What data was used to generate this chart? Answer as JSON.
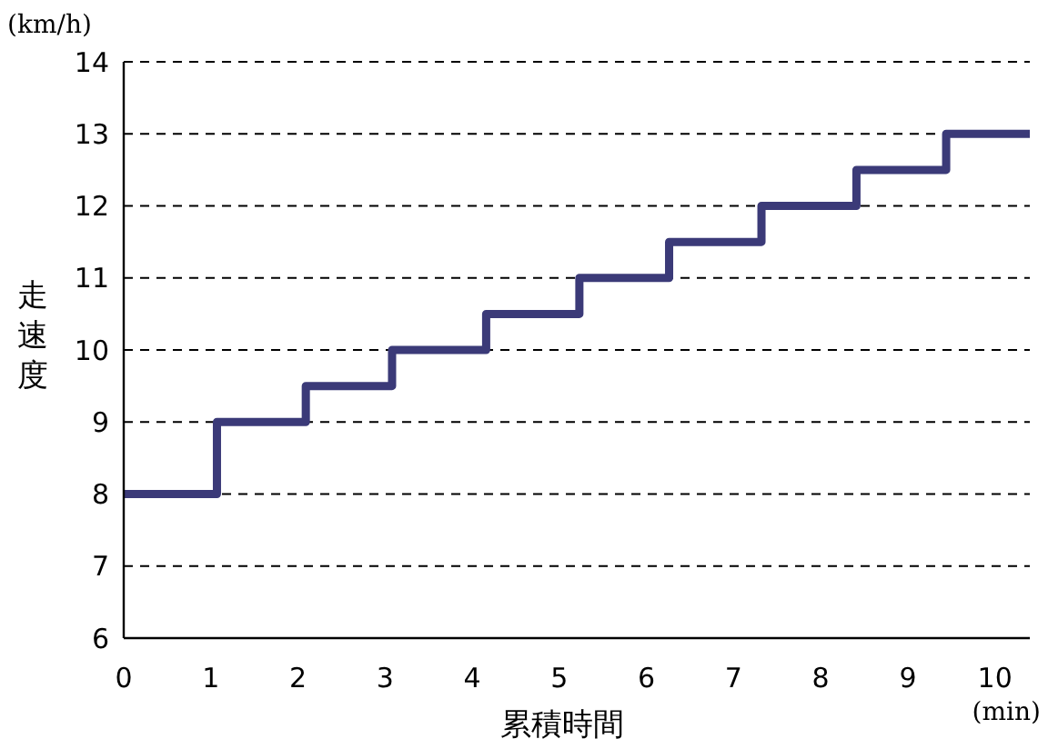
{
  "chart_data": {
    "type": "step",
    "xlabel": "累積時間",
    "ylabel": "走速度",
    "annotations": [
      "(km/h)",
      "(min)"
    ],
    "series": [
      {
        "color": "#3b3a78",
        "x": [
          0,
          1.07,
          2.09,
          3.08,
          4.16,
          5.23,
          6.26,
          7.32,
          8.41,
          9.44,
          10.4
        ],
        "values": [
          8,
          9,
          9.5,
          10,
          10.5,
          11,
          11.5,
          12,
          12.5,
          13,
          13
        ]
      }
    ],
    "xlim": [
      0,
      10.4
    ],
    "xticks": [
      0,
      1,
      2,
      3,
      4,
      5,
      6,
      7,
      8,
      9,
      10
    ],
    "ylim": [
      6,
      14
    ],
    "yticks": [
      6,
      7,
      8,
      9,
      10,
      11,
      12,
      13,
      14
    ],
    "grid": "y",
    "line_style": "solid"
  }
}
